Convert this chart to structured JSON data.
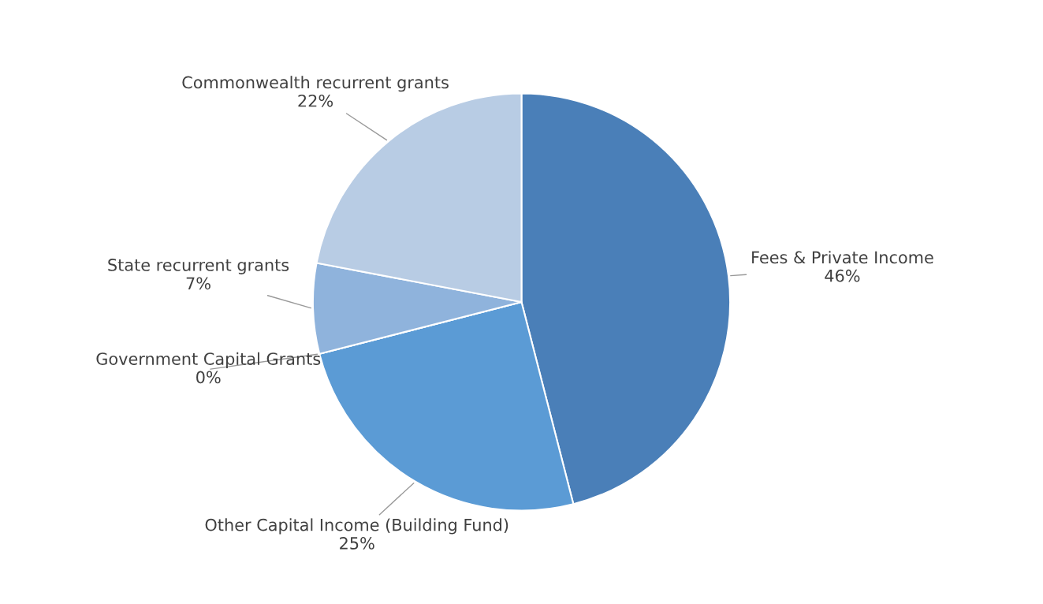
{
  "chart_data": {
    "type": "pie",
    "categories": [
      "Fees & Private Income",
      "Other Capital Income (Building Fund)",
      "Government Capital Grants",
      "State recurrent grants",
      "Commonwealth recurrent grants"
    ],
    "values": [
      46,
      25,
      0,
      7,
      22
    ],
    "value_labels": [
      "46%",
      "25%",
      "0%",
      "7%",
      "22%"
    ],
    "colors": [
      "#4a7fb8",
      "#5b9bd5",
      "#3f6fa3",
      "#8fb3dc",
      "#b8cce4"
    ]
  }
}
